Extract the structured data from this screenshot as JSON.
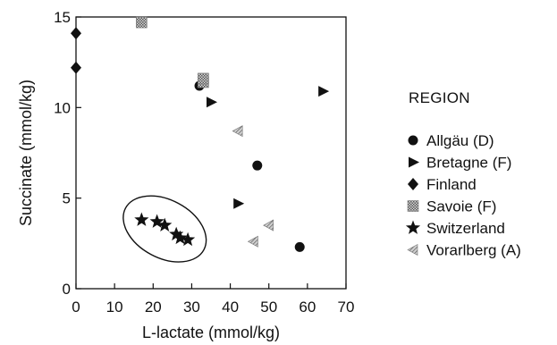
{
  "chart_data": {
    "type": "scatter",
    "title": "",
    "xlabel": "L-lactate (mmol/kg)",
    "ylabel": "Succinate (mmol/kg)",
    "xlim": [
      0,
      70
    ],
    "ylim": [
      0,
      15
    ],
    "xticks": [
      0,
      10,
      20,
      30,
      40,
      50,
      60,
      70
    ],
    "yticks": [
      0,
      5,
      10,
      15
    ],
    "grid": false,
    "legend": {
      "title": "REGION",
      "placement": "right-outside"
    },
    "series": [
      {
        "name": "Allgäu (D)",
        "marker": "circle",
        "color": "#111111",
        "points": [
          [
            32,
            11.2
          ],
          [
            47,
            6.8
          ],
          [
            58,
            2.3
          ]
        ]
      },
      {
        "name": "Bretagne (F)",
        "marker": "triangle-right",
        "color": "#111111",
        "points": [
          [
            35,
            10.3
          ],
          [
            64,
            10.9
          ],
          [
            42,
            4.7
          ]
        ]
      },
      {
        "name": "Finland",
        "marker": "diamond",
        "color": "#111111",
        "points": [
          [
            0,
            14.1
          ],
          [
            0,
            12.2
          ]
        ]
      },
      {
        "name": "Savoie (F)",
        "marker": "hatched-square",
        "color": "#8a8a8a",
        "points": [
          [
            17,
            14.7
          ],
          [
            33,
            11.4
          ],
          [
            33,
            11.6
          ]
        ]
      },
      {
        "name": "Switzerland",
        "marker": "star",
        "color": "#111111",
        "points": [
          [
            17,
            3.8
          ],
          [
            21,
            3.7
          ],
          [
            23,
            3.5
          ],
          [
            26,
            3.0
          ],
          [
            27,
            2.8
          ],
          [
            29,
            2.7
          ]
        ]
      },
      {
        "name": "Vorarlberg (A)",
        "marker": "triangle-left-hatched",
        "color": "#8a8a8a",
        "points": [
          [
            42,
            8.7
          ],
          [
            50,
            3.5
          ],
          [
            46,
            2.6
          ]
        ]
      }
    ],
    "annotations": [
      {
        "type": "ellipse",
        "note": "encloses the Switzerland group",
        "center": [
          23,
          3.3
        ],
        "rx": 11.5,
        "ry": 1.6,
        "rotation_deg": 28
      }
    ]
  }
}
